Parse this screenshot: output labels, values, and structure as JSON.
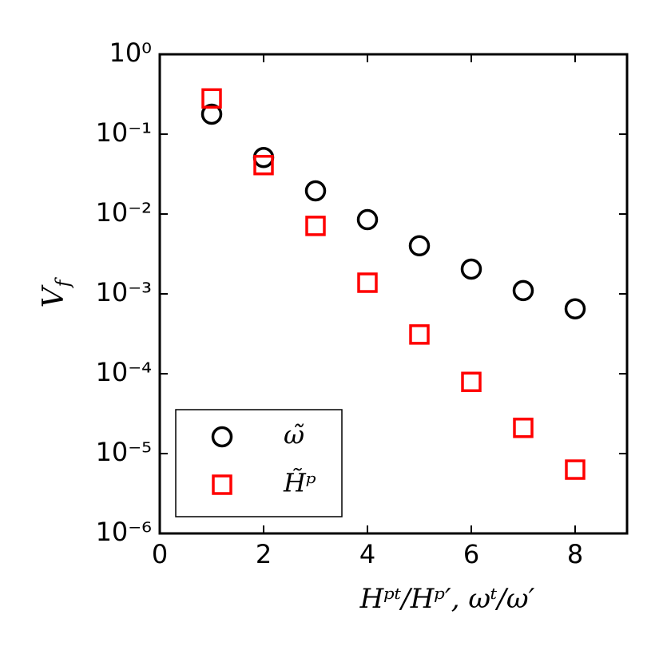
{
  "chart_data": {
    "type": "scatter",
    "xlabel": "Hᵖᵗ/Hᵖ′, ωᵗ/ω′",
    "ylabel": "Vf",
    "xlim": [
      0,
      9
    ],
    "xticks": [
      0,
      2,
      4,
      6,
      8
    ],
    "ylim": [
      1e-06,
      1
    ],
    "yscale": "log",
    "yticks": [
      {
        "value": 1e-06,
        "label": "10⁻⁶"
      },
      {
        "value": 1e-05,
        "label": "10⁻⁵"
      },
      {
        "value": 0.0001,
        "label": "10⁻⁴"
      },
      {
        "value": 0.001,
        "label": "10⁻³"
      },
      {
        "value": 0.01,
        "label": "10⁻²"
      },
      {
        "value": 0.1,
        "label": "10⁻¹"
      },
      {
        "value": 1,
        "label": "10⁰"
      }
    ],
    "legend": "lower left",
    "series": [
      {
        "name": "ω̃",
        "color": "#000000",
        "marker": "circle",
        "x": [
          1,
          2,
          3,
          4,
          5,
          6,
          7,
          8
        ],
        "values": [
          0.178,
          0.051,
          0.0195,
          0.0085,
          0.004,
          0.00204,
          0.0011,
          0.00065
        ]
      },
      {
        "name": "H̃ᵖ",
        "color": "#ff0000",
        "marker": "square",
        "x": [
          1,
          2,
          3,
          4,
          5,
          6,
          7,
          8
        ],
        "values": [
          0.28,
          0.041,
          0.0071,
          0.00138,
          0.00031,
          7.9e-05,
          2.1e-05,
          6.3e-06
        ]
      }
    ]
  }
}
